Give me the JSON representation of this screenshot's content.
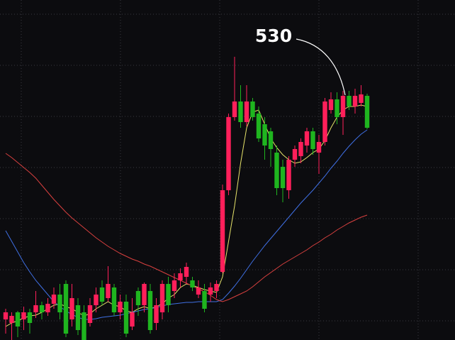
{
  "chart_data": {
    "type": "candlestick",
    "annotation": "530",
    "up_color": "#ff1f5a",
    "down_color": "#1fb51f",
    "grid": true,
    "ylim": [
      360.5,
      600
    ],
    "open": [
      375,
      372.5,
      380,
      375,
      380,
      380,
      385,
      380,
      386,
      392.5,
      400,
      375,
      385,
      380,
      372.5,
      385,
      397.5,
      390,
      397.5,
      380,
      387.5,
      370,
      395,
      385,
      395,
      372.5,
      380,
      400,
      395,
      402.5,
      405,
      402.5,
      392.5,
      395,
      392.5,
      395,
      408.5,
      466,
      517.5,
      528.5,
      514,
      528.5,
      520,
      512.5,
      507.5,
      492.5,
      482.5,
      466,
      487.5,
      490,
      497.5,
      507.5,
      492.5,
      500,
      522.5,
      530,
      517.5,
      532.5,
      525,
      527.5,
      532.5
    ],
    "close": [
      380,
      377.5,
      370,
      380,
      372.5,
      385,
      380,
      386,
      392.5,
      380,
      365,
      390,
      367.5,
      360.5,
      385,
      392.5,
      387.5,
      400,
      380,
      387.5,
      365,
      380,
      385,
      400,
      367.5,
      385,
      400,
      385,
      402.5,
      407.5,
      412,
      397.5,
      397.5,
      382.5,
      397.5,
      400,
      466,
      517.5,
      528.5,
      514,
      528.5,
      517.5,
      502.5,
      497.5,
      495,
      467.5,
      467.5,
      487.5,
      495,
      500,
      507.5,
      495,
      500,
      528.5,
      530,
      517.5,
      532.5,
      525,
      532.5,
      533.5,
      510
    ],
    "high": [
      382.5,
      380,
      381,
      384,
      382.5,
      395,
      387.5,
      390,
      397.5,
      400,
      402.5,
      400,
      390,
      385,
      390,
      397.5,
      402.5,
      412.5,
      400,
      392.5,
      392.5,
      390,
      397.5,
      401,
      400,
      390,
      402.5,
      405,
      407.5,
      411,
      415,
      405,
      402.5,
      400,
      401,
      402.5,
      470,
      520,
      560,
      540,
      540,
      531,
      525,
      517.5,
      510,
      497.5,
      487.5,
      490,
      497.5,
      502.5,
      510,
      510,
      505,
      531,
      535,
      535,
      536,
      536,
      537.5,
      540,
      534
    ],
    "low": [
      365,
      360.5,
      362.5,
      367.5,
      365,
      376,
      375,
      377.5,
      382.5,
      375,
      362.5,
      370,
      364,
      360.5,
      370,
      380,
      385,
      387.5,
      377.5,
      375,
      362.5,
      367.5,
      377.5,
      380,
      365,
      367.5,
      375,
      380,
      390,
      397.5,
      400,
      395,
      390,
      380,
      387.5,
      390,
      407.5,
      462.5,
      515,
      510,
      511,
      515,
      500,
      487.5,
      482.5,
      462.5,
      457.5,
      460,
      482.5,
      485,
      492.5,
      491,
      477.5,
      497.5,
      520,
      512.5,
      505,
      522.5,
      520,
      525,
      509
    ],
    "series": [
      {
        "color": "#e6e36a",
        "values": [
          370,
          372.5,
          374,
          376,
          377.5,
          378,
          380,
          382.5,
          385,
          386,
          384,
          382.5,
          380,
          377.5,
          379,
          382.5,
          385,
          387.5,
          385,
          384,
          381,
          380,
          382.5,
          384,
          382.5,
          384,
          386,
          390,
          392.5,
          397.5,
          400,
          399,
          397.5,
          396,
          395,
          394,
          405,
          430,
          455,
          485,
          510,
          521,
          522.5,
          512.5,
          502.5,
          496,
          491,
          487.5,
          485,
          486,
          489,
          492.5,
          495,
          501,
          510,
          517.5,
          522.5,
          525,
          525,
          526,
          525
        ]
      },
      {
        "color": "#3f6fe3",
        "values": [
          437.5,
          430,
          422.5,
          415,
          408.5,
          402.5,
          397.5,
          392.5,
          387.5,
          384,
          381,
          378.5,
          376.5,
          375,
          375,
          375.5,
          376.5,
          377,
          377.5,
          378,
          379,
          380,
          381,
          382,
          382.5,
          383.5,
          384.5,
          385.5,
          386,
          386.5,
          387,
          387,
          387.5,
          387.5,
          387.5,
          387.5,
          389,
          393.5,
          398.5,
          404,
          410,
          416,
          421.5,
          427,
          432,
          437,
          442,
          447,
          452,
          457,
          461.5,
          466,
          471,
          476,
          481.5,
          486.5,
          492,
          497,
          501.5,
          505.5,
          508.5
        ]
      },
      {
        "color": "#d8403f",
        "values": [
          492,
          489,
          485.5,
          482,
          478.5,
          474.5,
          469.5,
          464.5,
          459.5,
          455,
          450.5,
          446.5,
          443,
          439.5,
          436,
          432.5,
          429.5,
          426.5,
          424,
          421.5,
          419.5,
          417.5,
          416,
          414,
          412.5,
          410.5,
          408.5,
          406.5,
          404.5,
          402.5,
          400.5,
          398.5,
          396.5,
          394.5,
          392,
          389,
          387.5,
          389,
          391,
          393,
          395,
          398,
          401.5,
          405,
          408,
          411,
          414,
          416.5,
          419,
          421.5,
          424,
          427,
          429.5,
          432.5,
          435,
          438,
          440.5,
          443,
          445,
          447,
          448.5
        ]
      }
    ]
  }
}
